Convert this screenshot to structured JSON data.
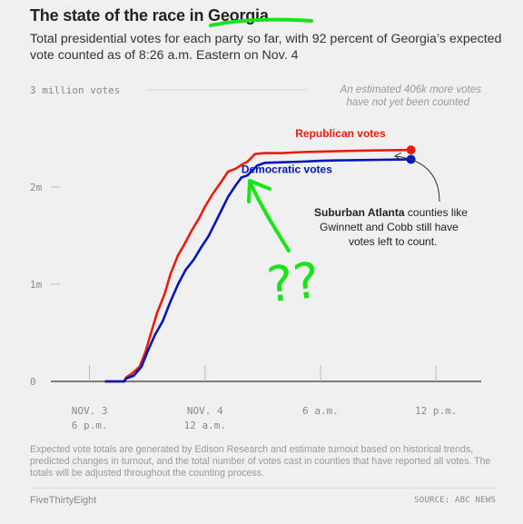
{
  "header": {
    "title": "The state of the race in Georgia",
    "subtitle": "Total presidential votes for each party so far, with 92 percent of Georgia’s expected vote counted as of 8:26 a.m. Eastern on Nov. 4"
  },
  "chart_data": {
    "type": "line",
    "title": "The state of the race in Georgia",
    "ylim": [
      0,
      3000000
    ],
    "xlim": [
      -0.5,
      19.5
    ],
    "y_ticks": [
      {
        "value": 0,
        "label": "0"
      },
      {
        "value": 1000000,
        "label": "1m"
      },
      {
        "value": 2000000,
        "label": "2m"
      },
      {
        "value": 3000000,
        "label": "3 million votes"
      }
    ],
    "x_ticks": [
      {
        "value": 0,
        "line1": "NOV. 3",
        "line2": "6 p.m."
      },
      {
        "value": 6,
        "line1": "NOV. 4",
        "line2": "12 a.m."
      },
      {
        "value": 12,
        "line1": "6 a.m.",
        "line2": ""
      },
      {
        "value": 18,
        "line1": "12 p.m.",
        "line2": ""
      }
    ],
    "series": [
      {
        "name": "Republican votes",
        "color": "#ea1c0d",
        "points": [
          [
            0.8,
            0
          ],
          [
            1.8,
            0
          ],
          [
            1.9,
            40000
          ],
          [
            2.2,
            80000
          ],
          [
            2.6,
            150000
          ],
          [
            2.9,
            300000
          ],
          [
            3.2,
            500000
          ],
          [
            3.5,
            700000
          ],
          [
            3.9,
            900000
          ],
          [
            4.2,
            1100000
          ],
          [
            4.6,
            1300000
          ],
          [
            4.9,
            1400000
          ],
          [
            5.3,
            1550000
          ],
          [
            5.7,
            1680000
          ],
          [
            6.0,
            1800000
          ],
          [
            6.4,
            1930000
          ],
          [
            6.9,
            2070000
          ],
          [
            7.2,
            2160000
          ],
          [
            7.6,
            2190000
          ],
          [
            7.9,
            2230000
          ],
          [
            8.2,
            2260000
          ],
          [
            8.6,
            2340000
          ],
          [
            9.1,
            2350000
          ],
          [
            10,
            2350000
          ],
          [
            11,
            2360000
          ],
          [
            12,
            2365000
          ],
          [
            13,
            2370000
          ],
          [
            14,
            2375000
          ],
          [
            15,
            2378000
          ],
          [
            16,
            2380000
          ],
          [
            16.7,
            2382000
          ]
        ]
      },
      {
        "name": "Democratic votes",
        "color": "#0015bc",
        "points": [
          [
            0.8,
            0
          ],
          [
            1.8,
            0
          ],
          [
            1.9,
            30000
          ],
          [
            2.3,
            60000
          ],
          [
            2.7,
            150000
          ],
          [
            3.0,
            300000
          ],
          [
            3.4,
            480000
          ],
          [
            3.8,
            620000
          ],
          [
            4.2,
            820000
          ],
          [
            4.6,
            1000000
          ],
          [
            5.0,
            1150000
          ],
          [
            5.4,
            1250000
          ],
          [
            5.8,
            1380000
          ],
          [
            6.2,
            1500000
          ],
          [
            6.6,
            1660000
          ],
          [
            6.9,
            1780000
          ],
          [
            7.2,
            1900000
          ],
          [
            7.6,
            2020000
          ],
          [
            7.9,
            2100000
          ],
          [
            8.2,
            2120000
          ],
          [
            8.5,
            2180000
          ],
          [
            8.7,
            2220000
          ],
          [
            9.1,
            2250000
          ],
          [
            10,
            2255000
          ],
          [
            11,
            2262000
          ],
          [
            12,
            2270000
          ],
          [
            13,
            2275000
          ],
          [
            14,
            2278000
          ],
          [
            15,
            2280000
          ],
          [
            16,
            2283000
          ],
          [
            16.7,
            2285000
          ]
        ]
      }
    ],
    "annotations": {
      "remaining_line1": "An estimated 406k more votes",
      "remaining_line2": "have not yet been counted",
      "callout_bold": "Suburban Atlanta",
      "callout_line1_rest": " counties like",
      "callout_line2": "Gwinnett and Cobb still have",
      "callout_line3": "votes left to count.",
      "handwritten_mark": "??"
    },
    "grid": false
  },
  "footer": {
    "note": "Expected vote totals are generated by Edison Research and estimate turnout based on historical trends, predicted changes in turnout, and the total number of votes cast in counties that have reported all votes. The totals will be adjusted throughout the counting process.",
    "brand": "FiveThirtyEight",
    "source": "SOURCE: ABC NEWS"
  }
}
